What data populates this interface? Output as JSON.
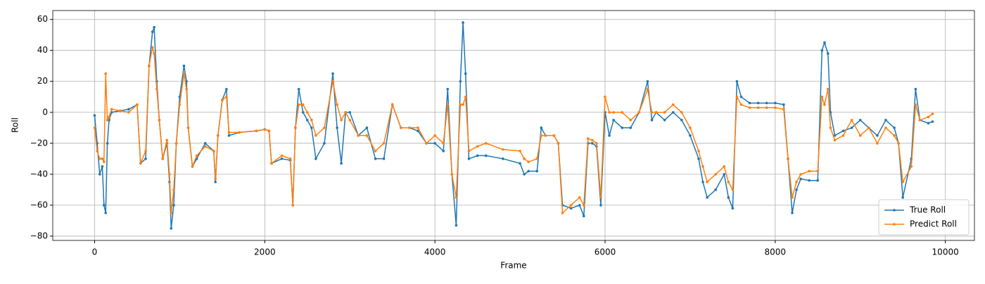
{
  "chart_data": {
    "type": "line",
    "xlabel": "Frame",
    "ylabel": "Roll",
    "x": [
      0,
      30,
      60,
      90,
      110,
      130,
      150,
      170,
      200,
      300,
      400,
      500,
      540,
      600,
      640,
      680,
      700,
      730,
      760,
      800,
      850,
      880,
      900,
      930,
      960,
      1000,
      1050,
      1080,
      1100,
      1150,
      1200,
      1300,
      1400,
      1420,
      1450,
      1500,
      1550,
      1580,
      1700,
      1900,
      2000,
      2050,
      2080,
      2200,
      2300,
      2330,
      2360,
      2400,
      2450,
      2500,
      2550,
      2600,
      2700,
      2800,
      2850,
      2900,
      2950,
      3000,
      3100,
      3200,
      3300,
      3400,
      3500,
      3600,
      3700,
      3800,
      3900,
      4000,
      4100,
      4150,
      4200,
      4250,
      4300,
      4330,
      4360,
      4400,
      4500,
      4600,
      4800,
      5000,
      5050,
      5100,
      5200,
      5250,
      5300,
      5400,
      5450,
      5500,
      5600,
      5700,
      5750,
      5800,
      5850,
      5900,
      5950,
      6000,
      6050,
      6100,
      6200,
      6300,
      6400,
      6500,
      6550,
      6600,
      6700,
      6800,
      6900,
      7000,
      7100,
      7150,
      7200,
      7300,
      7400,
      7450,
      7500,
      7550,
      7600,
      7700,
      7800,
      7900,
      8000,
      8100,
      8150,
      8200,
      8250,
      8300,
      8400,
      8500,
      8550,
      8580,
      8620,
      8650,
      8700,
      8800,
      8900,
      9000,
      9100,
      9200,
      9300,
      9400,
      9450,
      9500,
      9600,
      9650,
      9700,
      9800,
      9850
    ],
    "series": [
      {
        "name": "True Roll",
        "color": "#1f77b4",
        "values": [
          -2,
          -20,
          -40,
          -35,
          -60,
          -65,
          -20,
          -5,
          0,
          1,
          2,
          5,
          -33,
          -30,
          30,
          52,
          55,
          20,
          -5,
          -30,
          -20,
          -45,
          -75,
          -60,
          -20,
          10,
          30,
          20,
          -10,
          -35,
          -30,
          -20,
          -25,
          -45,
          -15,
          8,
          15,
          -15,
          -13,
          -12,
          -11,
          -12,
          -33,
          -30,
          -31,
          -60,
          -10,
          15,
          0,
          -5,
          -10,
          -30,
          -20,
          25,
          -10,
          -33,
          0,
          0,
          -15,
          -10,
          -30,
          -30,
          5,
          -10,
          -10,
          -12,
          -20,
          -20,
          -25,
          15,
          -40,
          -73,
          20,
          58,
          25,
          -30,
          -28,
          -28,
          -30,
          -33,
          -40,
          -38,
          -38,
          -10,
          -15,
          -15,
          -20,
          -60,
          -62,
          -60,
          -67,
          -20,
          -20,
          -22,
          -60,
          0,
          -15,
          -5,
          -10,
          -10,
          0,
          20,
          -5,
          0,
          -5,
          0,
          -5,
          -15,
          -30,
          -45,
          -55,
          -50,
          -40,
          -55,
          -62,
          20,
          10,
          6,
          6,
          6,
          6,
          5,
          -30,
          -65,
          -50,
          -43,
          -44,
          -44,
          40,
          45,
          38,
          0,
          -15,
          -12,
          -10,
          -5,
          -10,
          -15,
          -5,
          -10,
          -20,
          -55,
          -30,
          15,
          -5,
          -7,
          -6
        ]
      },
      {
        "name": "Predict Roll",
        "color": "#ff7f0e",
        "values": [
          -10,
          -25,
          -30,
          -30,
          -32,
          25,
          -5,
          -3,
          2,
          1,
          0,
          5,
          -33,
          -25,
          30,
          42,
          38,
          15,
          -5,
          -30,
          -18,
          -40,
          -65,
          -50,
          -20,
          5,
          25,
          15,
          -10,
          -35,
          -28,
          -22,
          -25,
          -43,
          -15,
          8,
          10,
          -13,
          -13,
          -12,
          -11,
          -12,
          -33,
          -28,
          -30,
          -60,
          -10,
          5,
          5,
          0,
          -5,
          -15,
          -10,
          20,
          5,
          -5,
          0,
          -5,
          -15,
          -15,
          -25,
          -20,
          5,
          -10,
          -10,
          -10,
          -20,
          -15,
          -20,
          5,
          -40,
          -55,
          5,
          5,
          10,
          -25,
          -22,
          -20,
          -24,
          -25,
          -30,
          -32,
          -30,
          -15,
          -15,
          -15,
          -20,
          -65,
          -60,
          -55,
          -60,
          -17,
          -18,
          -20,
          -55,
          10,
          0,
          0,
          0,
          -5,
          0,
          15,
          0,
          0,
          0,
          5,
          0,
          -10,
          -25,
          -35,
          -45,
          -40,
          -35,
          -45,
          -50,
          10,
          5,
          3,
          3,
          3,
          3,
          2,
          -30,
          -55,
          -45,
          -40,
          -38,
          -38,
          10,
          5,
          15,
          -10,
          -18,
          -15,
          -5,
          -15,
          -10,
          -20,
          -10,
          -15,
          -20,
          -45,
          -35,
          5,
          -5,
          -3,
          -1
        ]
      }
    ],
    "xlim": [
      -492,
      10342
    ],
    "xticks": [
      0,
      2000,
      4000,
      6000,
      8000,
      10000
    ],
    "ylim": [
      -82.75,
      65.75
    ],
    "yticks": [
      {
        "value": -80,
        "label": "−80"
      },
      {
        "value": -60,
        "label": "−60"
      },
      {
        "value": -40,
        "label": "−40"
      },
      {
        "value": -20,
        "label": "−20"
      },
      0,
      20,
      40,
      60
    ],
    "grid": true,
    "legend": "lower right"
  }
}
